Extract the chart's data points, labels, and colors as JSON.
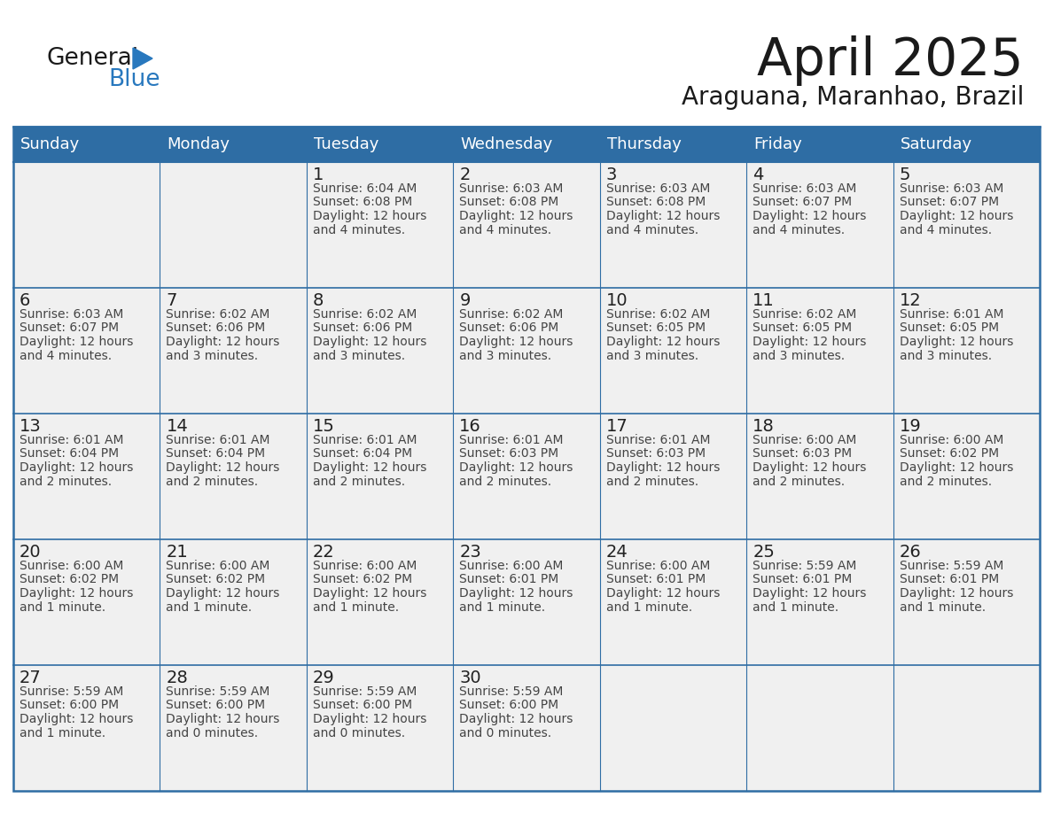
{
  "title": "April 2025",
  "subtitle": "Araguana, Maranhao, Brazil",
  "header_bg_color": "#2E6DA4",
  "header_text_color": "#FFFFFF",
  "cell_bg_color": "#F0F0F0",
  "day_number_color": "#222222",
  "cell_text_color": "#444444",
  "border_color": "#2E6DA4",
  "grid_color": "#2E6DA4",
  "title_color": "#1a1a1a",
  "logo_dark_color": "#1a1a1a",
  "logo_blue_color": "#2878BE",
  "days_of_week": [
    "Sunday",
    "Monday",
    "Tuesday",
    "Wednesday",
    "Thursday",
    "Friday",
    "Saturday"
  ],
  "calendar_data": [
    [
      {
        "day": null,
        "sunrise": null,
        "sunset": null,
        "dl1": null,
        "dl2": null
      },
      {
        "day": null,
        "sunrise": null,
        "sunset": null,
        "dl1": null,
        "dl2": null
      },
      {
        "day": 1,
        "sunrise": "6:04 AM",
        "sunset": "6:08 PM",
        "dl1": "Daylight: 12 hours",
        "dl2": "and 4 minutes."
      },
      {
        "day": 2,
        "sunrise": "6:03 AM",
        "sunset": "6:08 PM",
        "dl1": "Daylight: 12 hours",
        "dl2": "and 4 minutes."
      },
      {
        "day": 3,
        "sunrise": "6:03 AM",
        "sunset": "6:08 PM",
        "dl1": "Daylight: 12 hours",
        "dl2": "and 4 minutes."
      },
      {
        "day": 4,
        "sunrise": "6:03 AM",
        "sunset": "6:07 PM",
        "dl1": "Daylight: 12 hours",
        "dl2": "and 4 minutes."
      },
      {
        "day": 5,
        "sunrise": "6:03 AM",
        "sunset": "6:07 PM",
        "dl1": "Daylight: 12 hours",
        "dl2": "and 4 minutes."
      }
    ],
    [
      {
        "day": 6,
        "sunrise": "6:03 AM",
        "sunset": "6:07 PM",
        "dl1": "Daylight: 12 hours",
        "dl2": "and 4 minutes."
      },
      {
        "day": 7,
        "sunrise": "6:02 AM",
        "sunset": "6:06 PM",
        "dl1": "Daylight: 12 hours",
        "dl2": "and 3 minutes."
      },
      {
        "day": 8,
        "sunrise": "6:02 AM",
        "sunset": "6:06 PM",
        "dl1": "Daylight: 12 hours",
        "dl2": "and 3 minutes."
      },
      {
        "day": 9,
        "sunrise": "6:02 AM",
        "sunset": "6:06 PM",
        "dl1": "Daylight: 12 hours",
        "dl2": "and 3 minutes."
      },
      {
        "day": 10,
        "sunrise": "6:02 AM",
        "sunset": "6:05 PM",
        "dl1": "Daylight: 12 hours",
        "dl2": "and 3 minutes."
      },
      {
        "day": 11,
        "sunrise": "6:02 AM",
        "sunset": "6:05 PM",
        "dl1": "Daylight: 12 hours",
        "dl2": "and 3 minutes."
      },
      {
        "day": 12,
        "sunrise": "6:01 AM",
        "sunset": "6:05 PM",
        "dl1": "Daylight: 12 hours",
        "dl2": "and 3 minutes."
      }
    ],
    [
      {
        "day": 13,
        "sunrise": "6:01 AM",
        "sunset": "6:04 PM",
        "dl1": "Daylight: 12 hours",
        "dl2": "and 2 minutes."
      },
      {
        "day": 14,
        "sunrise": "6:01 AM",
        "sunset": "6:04 PM",
        "dl1": "Daylight: 12 hours",
        "dl2": "and 2 minutes."
      },
      {
        "day": 15,
        "sunrise": "6:01 AM",
        "sunset": "6:04 PM",
        "dl1": "Daylight: 12 hours",
        "dl2": "and 2 minutes."
      },
      {
        "day": 16,
        "sunrise": "6:01 AM",
        "sunset": "6:03 PM",
        "dl1": "Daylight: 12 hours",
        "dl2": "and 2 minutes."
      },
      {
        "day": 17,
        "sunrise": "6:01 AM",
        "sunset": "6:03 PM",
        "dl1": "Daylight: 12 hours",
        "dl2": "and 2 minutes."
      },
      {
        "day": 18,
        "sunrise": "6:00 AM",
        "sunset": "6:03 PM",
        "dl1": "Daylight: 12 hours",
        "dl2": "and 2 minutes."
      },
      {
        "day": 19,
        "sunrise": "6:00 AM",
        "sunset": "6:02 PM",
        "dl1": "Daylight: 12 hours",
        "dl2": "and 2 minutes."
      }
    ],
    [
      {
        "day": 20,
        "sunrise": "6:00 AM",
        "sunset": "6:02 PM",
        "dl1": "Daylight: 12 hours",
        "dl2": "and 1 minute."
      },
      {
        "day": 21,
        "sunrise": "6:00 AM",
        "sunset": "6:02 PM",
        "dl1": "Daylight: 12 hours",
        "dl2": "and 1 minute."
      },
      {
        "day": 22,
        "sunrise": "6:00 AM",
        "sunset": "6:02 PM",
        "dl1": "Daylight: 12 hours",
        "dl2": "and 1 minute."
      },
      {
        "day": 23,
        "sunrise": "6:00 AM",
        "sunset": "6:01 PM",
        "dl1": "Daylight: 12 hours",
        "dl2": "and 1 minute."
      },
      {
        "day": 24,
        "sunrise": "6:00 AM",
        "sunset": "6:01 PM",
        "dl1": "Daylight: 12 hours",
        "dl2": "and 1 minute."
      },
      {
        "day": 25,
        "sunrise": "5:59 AM",
        "sunset": "6:01 PM",
        "dl1": "Daylight: 12 hours",
        "dl2": "and 1 minute."
      },
      {
        "day": 26,
        "sunrise": "5:59 AM",
        "sunset": "6:01 PM",
        "dl1": "Daylight: 12 hours",
        "dl2": "and 1 minute."
      }
    ],
    [
      {
        "day": 27,
        "sunrise": "5:59 AM",
        "sunset": "6:00 PM",
        "dl1": "Daylight: 12 hours",
        "dl2": "and 1 minute."
      },
      {
        "day": 28,
        "sunrise": "5:59 AM",
        "sunset": "6:00 PM",
        "dl1": "Daylight: 12 hours",
        "dl2": "and 0 minutes."
      },
      {
        "day": 29,
        "sunrise": "5:59 AM",
        "sunset": "6:00 PM",
        "dl1": "Daylight: 12 hours",
        "dl2": "and 0 minutes."
      },
      {
        "day": 30,
        "sunrise": "5:59 AM",
        "sunset": "6:00 PM",
        "dl1": "Daylight: 12 hours",
        "dl2": "and 0 minutes."
      },
      {
        "day": null,
        "sunrise": null,
        "sunset": null,
        "dl1": null,
        "dl2": null
      },
      {
        "day": null,
        "sunrise": null,
        "sunset": null,
        "dl1": null,
        "dl2": null
      },
      {
        "day": null,
        "sunrise": null,
        "sunset": null,
        "dl1": null,
        "dl2": null
      }
    ]
  ]
}
